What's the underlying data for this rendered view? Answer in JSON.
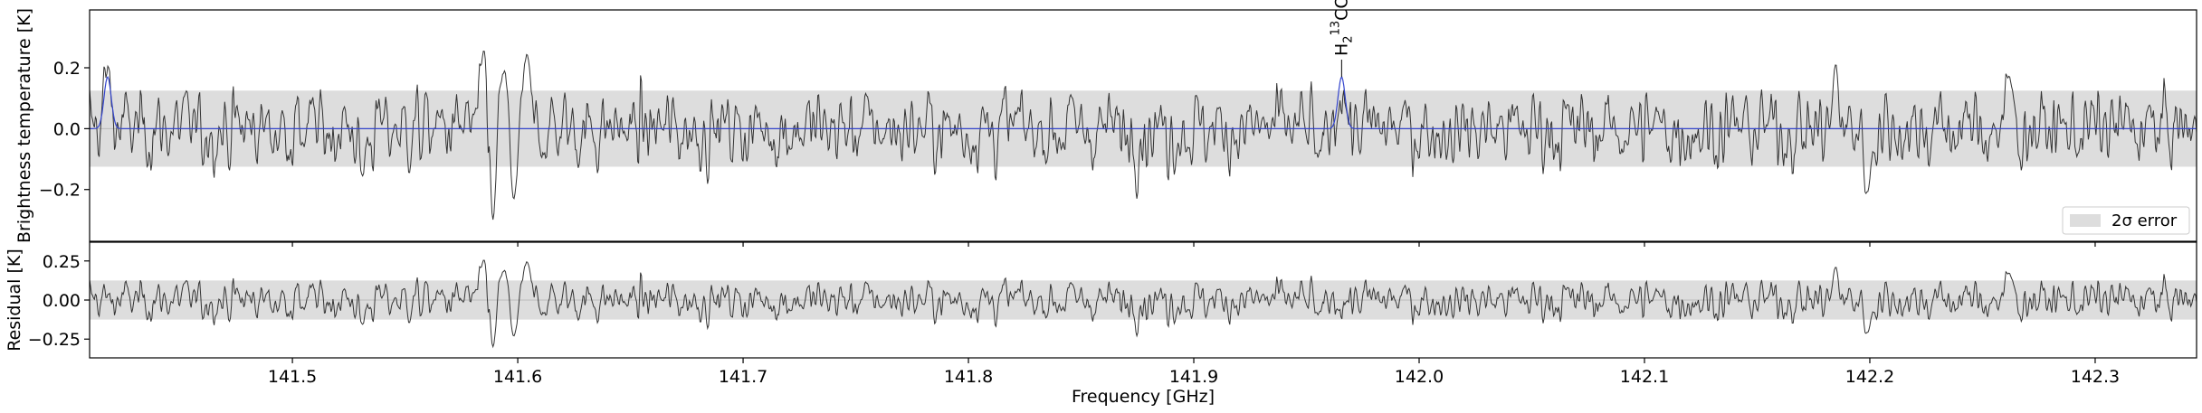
{
  "chart_data": [
    {
      "type": "line",
      "panel": "top",
      "xlabel": "",
      "ylabel": "Brightness temperature [K]",
      "xlim": [
        141.41,
        142.345
      ],
      "ylim": [
        -0.37,
        0.39
      ],
      "yticks": [
        -0.2,
        0.0,
        0.2
      ],
      "yticklabels": [
        "−0.2",
        "0.0",
        "0.2"
      ],
      "error_band": 0.125,
      "legend": {
        "position": "lower-right",
        "entries": [
          {
            "label": "2σ error",
            "color": "#dddddd"
          }
        ]
      },
      "line_annotations": [
        {
          "label": "H₂¹³CO",
          "x": 141.9656
        }
      ],
      "series": [
        {
          "role": "observed",
          "color": "#333333",
          "noise_rms": 0.062,
          "features": [
            {
              "x": 141.585,
              "y": 0.26
            },
            {
              "x": 141.589,
              "y": -0.3
            },
            {
              "x": 141.594,
              "y": 0.2
            },
            {
              "x": 141.598,
              "y": -0.24
            },
            {
              "x": 141.604,
              "y": 0.24
            },
            {
              "x": 141.531,
              "y": -0.16
            },
            {
              "x": 141.956,
              "y": -0.14
            },
            {
              "x": 142.185,
              "y": 0.19
            },
            {
              "x": 142.199,
              "y": -0.22
            },
            {
              "x": 142.262,
              "y": 0.18
            }
          ]
        },
        {
          "role": "model",
          "color": "#3344cc",
          "peaks": [
            {
              "x": 141.418,
              "amp": 0.17,
              "width": 0.0016
            },
            {
              "x": 141.9656,
              "amp": 0.17,
              "width": 0.0016
            }
          ]
        }
      ]
    },
    {
      "type": "line",
      "panel": "bottom",
      "xlabel": "Frequency [GHz]",
      "ylabel": "Residual [K]",
      "xlim": [
        141.41,
        142.345
      ],
      "ylim": [
        -0.37,
        0.37
      ],
      "yticks": [
        -0.25,
        0.0,
        0.25
      ],
      "yticklabels": [
        "−0.25",
        "0.00",
        "0.25"
      ],
      "xticks": [
        141.5,
        141.6,
        141.7,
        141.8,
        141.9,
        142.0,
        142.1,
        142.2,
        142.3
      ],
      "xticklabels": [
        "141.5",
        "141.6",
        "141.7",
        "141.8",
        "141.9",
        "142.0",
        "142.1",
        "142.2",
        "142.3"
      ],
      "error_band": 0.125,
      "series": [
        {
          "role": "residual",
          "color": "#333333",
          "description": "observed minus model"
        }
      ]
    }
  ]
}
